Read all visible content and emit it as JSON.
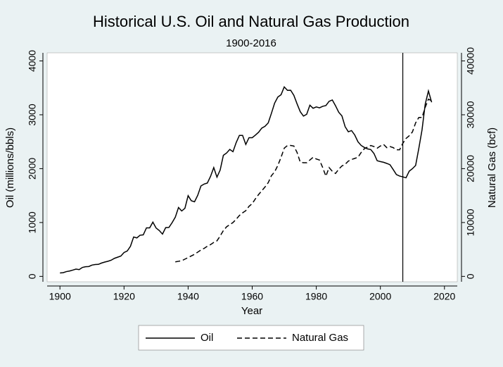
{
  "chart_data": {
    "type": "line",
    "title": "Historical U.S. Oil and Natural Gas Production",
    "subtitle": "1900-2016",
    "x_label": "Year",
    "y_label": "Oil (millions/bbls)",
    "y2_label": "Natural Gas (bcf)",
    "x": [
      1900,
      1901,
      1902,
      1903,
      1904,
      1905,
      1906,
      1907,
      1908,
      1909,
      1910,
      1911,
      1912,
      1913,
      1914,
      1915,
      1916,
      1917,
      1918,
      1919,
      1920,
      1921,
      1922,
      1923,
      1924,
      1925,
      1926,
      1927,
      1928,
      1929,
      1930,
      1931,
      1932,
      1933,
      1934,
      1935,
      1936,
      1937,
      1938,
      1939,
      1940,
      1941,
      1942,
      1943,
      1944,
      1945,
      1946,
      1947,
      1948,
      1949,
      1950,
      1951,
      1952,
      1953,
      1954,
      1955,
      1956,
      1957,
      1958,
      1959,
      1960,
      1961,
      1962,
      1963,
      1964,
      1965,
      1966,
      1967,
      1968,
      1969,
      1970,
      1971,
      1972,
      1973,
      1974,
      1975,
      1976,
      1977,
      1978,
      1979,
      1980,
      1981,
      1982,
      1983,
      1984,
      1985,
      1986,
      1987,
      1988,
      1989,
      1990,
      1991,
      1992,
      1993,
      1994,
      1995,
      1996,
      1997,
      1998,
      1999,
      2000,
      2001,
      2002,
      2003,
      2004,
      2005,
      2006,
      2007,
      2008,
      2009,
      2010,
      2011,
      2012,
      2013,
      2014,
      2015,
      2016
    ],
    "series": [
      {
        "name": "Oil",
        "color": "#000000",
        "dash": false,
        "values": [
          64,
          69,
          89,
          100,
          117,
          135,
          126,
          166,
          179,
          183,
          210,
          220,
          223,
          248,
          266,
          281,
          301,
          335,
          356,
          378,
          443,
          472,
          558,
          732,
          714,
          764,
          771,
          901,
          901,
          1007,
          898,
          851,
          785,
          905,
          908,
          997,
          1099,
          1279,
          1214,
          1264,
          1498,
          1404,
          1385,
          1505,
          1678,
          1714,
          1733,
          1857,
          2020,
          1842,
          1974,
          2248,
          2290,
          2357,
          2315,
          2484,
          2617,
          2617,
          2449,
          2575,
          2575,
          2622,
          2676,
          2753,
          2787,
          2849,
          3028,
          3216,
          3329,
          3372,
          3517,
          3454,
          3455,
          3361,
          3203,
          3057,
          2976,
          3009,
          3178,
          3121,
          3146,
          3129,
          3157,
          3171,
          3250,
          3275,
          3168,
          3047,
          2979,
          2779,
          2685,
          2707,
          2625,
          2499,
          2431,
          2394,
          2366,
          2355,
          2282,
          2147,
          2131,
          2118,
          2097,
          2073,
          1983,
          1890,
          1862,
          1848,
          1830,
          1953,
          1999,
          2059,
          2377,
          2720,
          3199,
          3442,
          3232
        ]
      },
      {
        "name": "Natural Gas",
        "color": "#000000",
        "dash": true,
        "axis": "y2",
        "values": [
          null,
          null,
          null,
          null,
          null,
          null,
          null,
          null,
          null,
          null,
          null,
          null,
          null,
          null,
          null,
          null,
          null,
          null,
          null,
          null,
          null,
          null,
          null,
          null,
          null,
          null,
          null,
          null,
          null,
          null,
          null,
          null,
          null,
          null,
          null,
          null,
          2700,
          2800,
          2900,
          3200,
          3500,
          3800,
          4100,
          4500,
          4900,
          5200,
          5600,
          5900,
          6300,
          6600,
          7500,
          8500,
          9200,
          9600,
          10000,
          10600,
          11300,
          11800,
          12200,
          13000,
          13500,
          14400,
          15200,
          15900,
          16600,
          17400,
          18700,
          19400,
          20600,
          22100,
          23800,
          24300,
          24300,
          24200,
          23000,
          21200,
          21100,
          21100,
          21600,
          22100,
          21800,
          21600,
          20200,
          18600,
          20200,
          19500,
          19100,
          19900,
          20500,
          20800,
          21400,
          21700,
          21900,
          22100,
          23000,
          23700,
          24000,
          24300,
          24100,
          23800,
          24200,
          24500,
          23900,
          24100,
          23900,
          23500,
          23500,
          24700,
          25600,
          26100,
          26800,
          28500,
          29500,
          29500,
          31400,
          32900,
          32600
        ]
      }
    ],
    "xline": 2007,
    "xlim": [
      1896,
      2024
    ],
    "xticks": [
      1900,
      1920,
      1940,
      1960,
      1980,
      2000,
      2020
    ],
    "ylim": [
      -100,
      4150
    ],
    "yticks": [
      0,
      1000,
      2000,
      3000,
      4000
    ],
    "y2lim": [
      -1000,
      41500
    ],
    "y2ticks": [
      0,
      10000,
      20000,
      30000,
      40000
    ]
  }
}
